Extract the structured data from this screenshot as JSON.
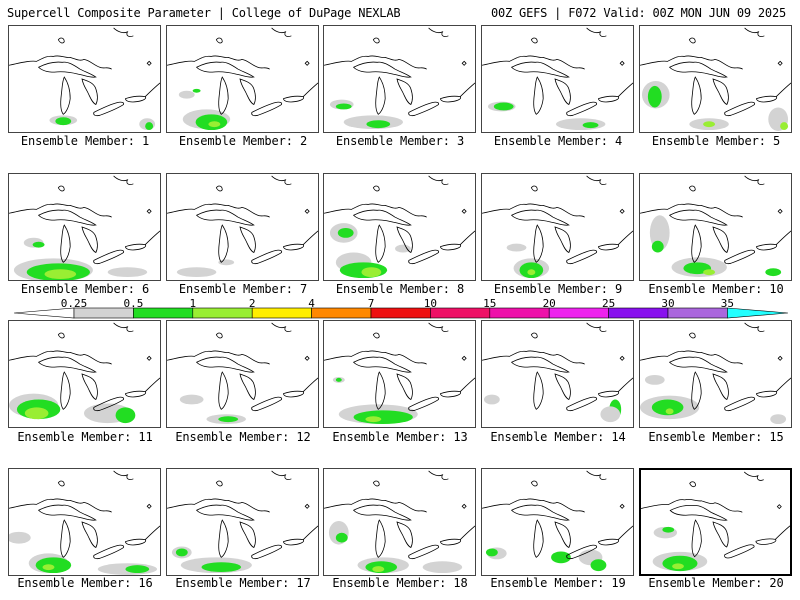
{
  "header": {
    "title": "Supercell Composite Parameter | College of DuPage NEXLAB",
    "run_info": "00Z GEFS | F072 Valid: 00Z MON JUN 09 2025"
  },
  "colorbar": {
    "tick_labels": [
      "0.25",
      "0.5",
      "1",
      "2",
      "4",
      "7",
      "10",
      "15",
      "20",
      "25",
      "30",
      "35"
    ],
    "colors": [
      "#d3d3d3",
      "#22dd22",
      "#99ee33",
      "#ffee00",
      "#ff8800",
      "#ee1111",
      "#ee1166",
      "#ee11aa",
      "#ee22ee",
      "#8811ee",
      "#aa66dd",
      "#22ffff"
    ]
  },
  "members": [
    {
      "label": "Ensemble Member: 1"
    },
    {
      "label": "Ensemble Member: 2"
    },
    {
      "label": "Ensemble Member: 3"
    },
    {
      "label": "Ensemble Member: 4"
    },
    {
      "label": "Ensemble Member: 5"
    },
    {
      "label": "Ensemble Member: 6"
    },
    {
      "label": "Ensemble Member: 7"
    },
    {
      "label": "Ensemble Member: 8"
    },
    {
      "label": "Ensemble Member: 9"
    },
    {
      "label": "Ensemble Member: 10"
    },
    {
      "label": "Ensemble Member: 11"
    },
    {
      "label": "Ensemble Member: 12"
    },
    {
      "label": "Ensemble Member: 13"
    },
    {
      "label": "Ensemble Member: 14"
    },
    {
      "label": "Ensemble Member: 15"
    },
    {
      "label": "Ensemble Member: 16"
    },
    {
      "label": "Ensemble Member: 17"
    },
    {
      "label": "Ensemble Member: 18"
    },
    {
      "label": "Ensemble Member: 19"
    },
    {
      "label": "Ensemble Member: 20",
      "selected": true
    }
  ]
}
